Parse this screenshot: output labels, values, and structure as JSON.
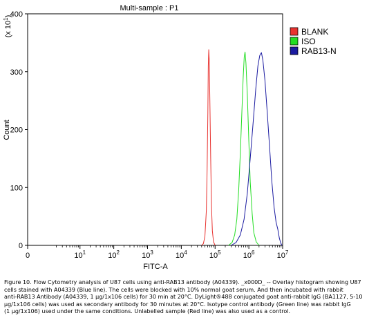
{
  "chart_data": {
    "type": "line",
    "title": "Multi-sample : P1",
    "xlabel": "FITC-A",
    "ylabel": "Count",
    "y_multiplier_label": "(x 10",
    "y_multiplier_exp": "1",
    "y_multiplier_close": ")",
    "x_scale": "log",
    "xlim": [
      0,
      10000000
    ],
    "ylim": [
      0,
      400
    ],
    "x_ticks": [
      {
        "base": "0",
        "exp": "",
        "value": 0
      },
      {
        "base": "10",
        "exp": "1",
        "value": 10
      },
      {
        "base": "10",
        "exp": "2",
        "value": 100
      },
      {
        "base": "10",
        "exp": "3",
        "value": 1000
      },
      {
        "base": "10",
        "exp": "4",
        "value": 10000
      },
      {
        "base": "10",
        "exp": "5",
        "value": 100000
      },
      {
        "base": "10",
        "exp": "6",
        "value": 1000000
      },
      {
        "base": "10",
        "exp": "7",
        "value": 10000000
      }
    ],
    "y_ticks": [
      0,
      100,
      200,
      300,
      400
    ],
    "legend_position": "top-right",
    "series": [
      {
        "name": "BLANK",
        "color": "#e8322f",
        "points": [
          [
            40000,
            0
          ],
          [
            45000,
            3
          ],
          [
            50000,
            15
          ],
          [
            55000,
            60
          ],
          [
            58000,
            130
          ],
          [
            61000,
            230
          ],
          [
            63000,
            310
          ],
          [
            65000,
            338
          ],
          [
            67000,
            320
          ],
          [
            70000,
            250
          ],
          [
            74000,
            150
          ],
          [
            78000,
            70
          ],
          [
            83000,
            25
          ],
          [
            90000,
            6
          ],
          [
            100000,
            0
          ]
        ]
      },
      {
        "name": "ISO",
        "color": "#22dd22",
        "points": [
          [
            250000,
            0
          ],
          [
            320000,
            5
          ],
          [
            380000,
            18
          ],
          [
            440000,
            45
          ],
          [
            500000,
            95
          ],
          [
            560000,
            160
          ],
          [
            620000,
            230
          ],
          [
            680000,
            290
          ],
          [
            730000,
            325
          ],
          [
            770000,
            334
          ],
          [
            820000,
            315
          ],
          [
            900000,
            260
          ],
          [
            1000000,
            180
          ],
          [
            1100000,
            110
          ],
          [
            1250000,
            55
          ],
          [
            1400000,
            22
          ],
          [
            1650000,
            6
          ],
          [
            2000000,
            0
          ]
        ]
      },
      {
        "name": "RAB13-N",
        "color": "#1a1aa0",
        "points": [
          [
            300000,
            0
          ],
          [
            420000,
            5
          ],
          [
            560000,
            18
          ],
          [
            720000,
            45
          ],
          [
            900000,
            90
          ],
          [
            1100000,
            150
          ],
          [
            1350000,
            215
          ],
          [
            1600000,
            270
          ],
          [
            1850000,
            310
          ],
          [
            2100000,
            328
          ],
          [
            2350000,
            333
          ],
          [
            2600000,
            320
          ],
          [
            3000000,
            285
          ],
          [
            3500000,
            230
          ],
          [
            4100000,
            170
          ],
          [
            4800000,
            110
          ],
          [
            5600000,
            65
          ],
          [
            6400000,
            40
          ],
          [
            7200000,
            28
          ],
          [
            8000000,
            12
          ],
          [
            8800000,
            4
          ],
          [
            9500000,
            0
          ]
        ]
      }
    ]
  },
  "caption": {
    "lines": [
      "Figure 10. Flow Cytometry analysis of U87 cells using anti-RAB13 antibody (A04339). _x000D_ -- Overlay histogram showing U87",
      "cells stained with A04339 (Blue line). The cells were blocked with 10% normal goat serum.  And then incubated with rabbit",
      "anti-RAB13 Antibody (A04339, 1 μg/1x106 cells) for 30 min at 20°C. DyLight®488 conjugated goat anti-rabbit IgG (BA1127, 5-10",
      "μg/1x106 cells) was used as secondary antibody for 30 minutes at 20°C. Isotype control antibody (Green line) was rabbit IgG",
      "(1 μg/1x106) used under the same conditions. Unlabelled sample (Red line) was also used as a control."
    ]
  }
}
